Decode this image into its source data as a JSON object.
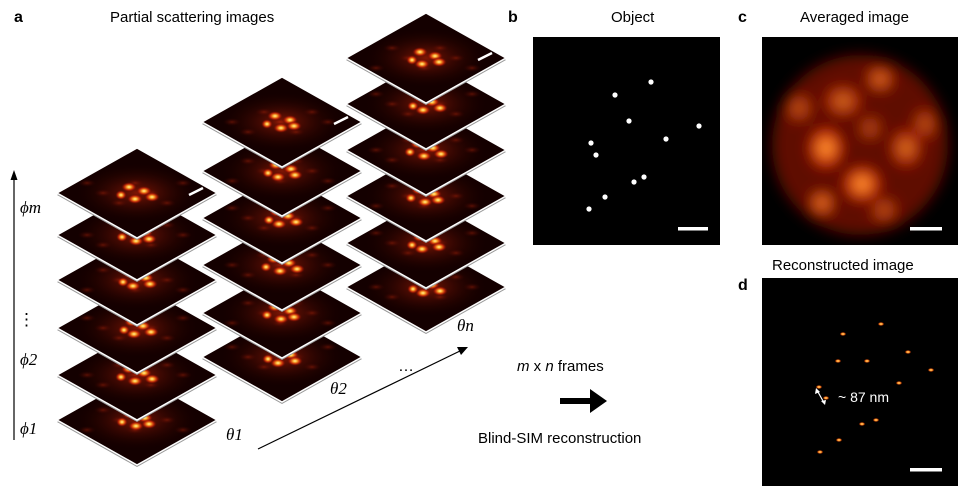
{
  "panels": {
    "a": {
      "letter": "a",
      "title": "Partial scattering images"
    },
    "b": {
      "letter": "b",
      "title": "Object"
    },
    "c": {
      "letter": "c",
      "title": "Averaged image"
    },
    "d": {
      "letter": "d",
      "title": "Reconstructed image",
      "annotation": "~ 87 nm"
    }
  },
  "axes": {
    "phi_m": "ϕm",
    "phi_2": "ϕ2",
    "phi_1": "ϕ1",
    "vdots": "⋮",
    "theta_1": "θ1",
    "theta_2": "θ2",
    "theta_n": "θn",
    "hdots": "…"
  },
  "flow": {
    "frames_m": "m",
    "frames_x": " x ",
    "frames_n": "n",
    "frames_rest": " frames",
    "reconstruction": "Blind-SIM reconstruction"
  },
  "colors": {
    "scatter_glow": "#ff7a1a",
    "scatter_core": "#ffe066",
    "object_dot": "#ffffff",
    "recon_dot": "#ff9a2a",
    "background": "#000000"
  }
}
